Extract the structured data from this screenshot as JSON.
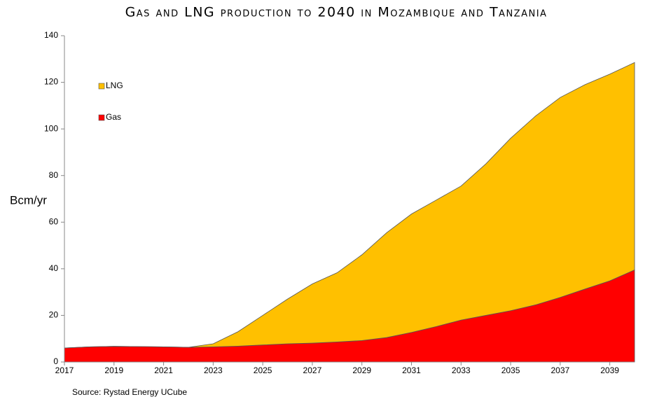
{
  "chart_data": {
    "type": "stacked-area",
    "title": "Gas and LNG production to 2040 in Mozambique and Tanzania",
    "y_label": "Bcm/yr",
    "source": "Source: Rystad Energy UCube",
    "x": [
      2017,
      2018,
      2019,
      2020,
      2021,
      2022,
      2023,
      2024,
      2025,
      2026,
      2027,
      2028,
      2029,
      2030,
      2031,
      2032,
      2033,
      2034,
      2035,
      2036,
      2037,
      2038,
      2039,
      2040
    ],
    "xlim": [
      2017,
      2040
    ],
    "xticks": [
      2017,
      2019,
      2021,
      2023,
      2025,
      2027,
      2029,
      2031,
      2033,
      2035,
      2037,
      2039
    ],
    "ylim": [
      0,
      140
    ],
    "yticks": [
      0,
      20,
      40,
      60,
      80,
      100,
      120,
      140
    ],
    "legend": "upper left",
    "series": [
      {
        "name": "Gas",
        "color": "#ff0000",
        "values": [
          6,
          6.5,
          6.7,
          6.6,
          6.5,
          6.3,
          6.5,
          6.8,
          7.3,
          7.8,
          8.1,
          8.6,
          9.2,
          10.5,
          12.7,
          15.2,
          18,
          20,
          22,
          24.5,
          27.7,
          31.3,
          34.8,
          39.5
        ]
      },
      {
        "name": "LNG",
        "color": "#ffc000",
        "values": [
          0,
          0,
          0,
          0,
          0,
          0,
          1.3,
          6.2,
          12.7,
          19.2,
          25.4,
          29.7,
          36.8,
          45,
          50.8,
          54.3,
          57.5,
          65,
          74,
          81,
          85.8,
          87.7,
          88.7,
          89
        ]
      }
    ]
  }
}
